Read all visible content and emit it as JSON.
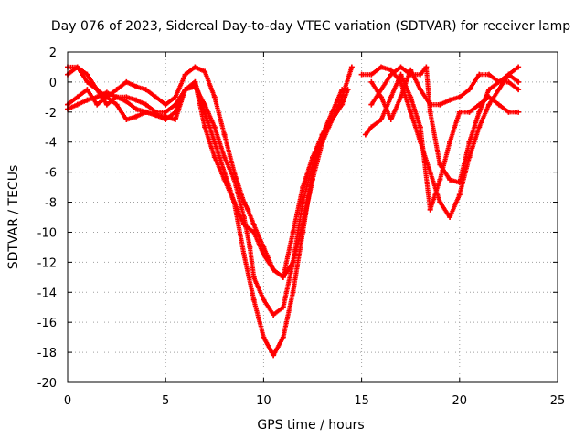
{
  "chart_data": {
    "type": "scatter",
    "title": "Day 076 of 2023, Sidereal Day-to-day VTEC variation (SDTVAR) for receiver lamp",
    "xlabel": "GPS time / hours",
    "ylabel": "SDTVAR / TECUs",
    "xlim": [
      0,
      25
    ],
    "ylim": [
      -20,
      2
    ],
    "xticks": [
      "0",
      "5",
      "10",
      "15",
      "20",
      "25"
    ],
    "yticks": [
      "2",
      "0",
      "-2",
      "-4",
      "-6",
      "-8",
      "-10",
      "-12",
      "-14",
      "-16",
      "-18",
      "-20"
    ],
    "grid": true,
    "marker": "+",
    "color": "#ff0000",
    "series": [
      {
        "name": "series-1",
        "x": [
          0.0,
          0.5,
          1.0,
          1.5,
          2.0,
          2.5,
          3.0,
          3.5,
          4.0,
          4.5,
          5.0,
          5.5,
          6.0,
          6.5,
          7.0,
          7.5,
          8.0,
          8.5,
          9.0,
          9.2,
          9.5,
          10.0,
          10.5,
          11.0,
          11.5,
          12.0,
          12.5,
          13.0,
          13.5,
          14.0,
          14.5
        ],
        "y": [
          1.0,
          1.0,
          0.0,
          -0.5,
          -1.0,
          -0.5,
          0.0,
          -0.3,
          -0.5,
          -1.0,
          -1.5,
          -1.0,
          0.5,
          1.0,
          0.7,
          -1.0,
          -3.5,
          -6.0,
          -8.0,
          -8.5,
          -9.5,
          -11.0,
          -12.5,
          -13.0,
          -12.0,
          -9.5,
          -6.5,
          -4.0,
          -2.5,
          -1.0,
          1.0
        ]
      },
      {
        "name": "series-2",
        "x": [
          0.0,
          0.5,
          1.0,
          1.5,
          2.0,
          2.5,
          3.0,
          3.5,
          4.0,
          4.5,
          5.0,
          5.5,
          6.0,
          6.5,
          7.0,
          7.5,
          8.0,
          8.5,
          9.0,
          9.3,
          9.5,
          10.0,
          10.5,
          11.0,
          11.5,
          12.0,
          12.5,
          13.0,
          13.5,
          14.0,
          14.3
        ],
        "y": [
          0.5,
          1.0,
          0.5,
          -0.5,
          -1.5,
          -1.0,
          -1.0,
          -1.2,
          -1.5,
          -2.0,
          -2.0,
          -1.5,
          -0.5,
          -0.3,
          -1.5,
          -3.0,
          -5.0,
          -6.5,
          -9.0,
          -11.0,
          -13.0,
          -14.5,
          -15.5,
          -15.0,
          -12.0,
          -8.0,
          -5.5,
          -3.5,
          -2.5,
          -1.5,
          -0.5
        ]
      },
      {
        "name": "series-3",
        "x": [
          0.0,
          0.5,
          1.0,
          1.5,
          2.0,
          2.5,
          3.0,
          3.5,
          4.0,
          4.5,
          5.0,
          5.5,
          6.0,
          6.5,
          7.0,
          7.5,
          8.0,
          8.5,
          9.0,
          9.5,
          10.0,
          10.5,
          11.0,
          11.5,
          12.0,
          12.5,
          13.0,
          13.5,
          14.0
        ],
        "y": [
          -1.5,
          -1.0,
          -0.5,
          -1.5,
          -1.0,
          -1.5,
          -2.5,
          -2.3,
          -2.0,
          -2.2,
          -2.3,
          -2.5,
          -0.5,
          0.0,
          -2.0,
          -4.0,
          -6.0,
          -8.0,
          -11.5,
          -14.5,
          -17.0,
          -18.2,
          -17.0,
          -14.0,
          -10.0,
          -6.0,
          -3.5,
          -2.0,
          -0.5
        ]
      },
      {
        "name": "series-4",
        "x": [
          0.0,
          0.5,
          1.0,
          1.5,
          2.0,
          2.5,
          3.0,
          3.5,
          4.0,
          4.5,
          5.0,
          5.5,
          6.0,
          6.5,
          7.0,
          7.5,
          8.0,
          8.5,
          9.0,
          9.5,
          10.0,
          10.5,
          11.0,
          11.5,
          12.0,
          12.5,
          13.0,
          13.5
        ],
        "y": [
          -1.8,
          -1.5,
          -1.2,
          -1.0,
          -0.7,
          -1.0,
          -1.3,
          -1.8,
          -2.0,
          -2.2,
          -2.5,
          -2.0,
          -0.5,
          0.0,
          -3.0,
          -5.0,
          -6.5,
          -8.0,
          -9.5,
          -10.0,
          -11.5,
          -12.5,
          -13.0,
          -10.0,
          -7.0,
          -5.0,
          -3.5,
          -2.5
        ]
      },
      {
        "name": "series-5",
        "x": [
          15.0,
          15.5,
          16.0,
          16.5,
          17.0,
          17.5,
          18.0,
          18.5,
          19.0,
          19.5,
          20.0,
          20.5,
          21.0,
          21.5,
          22.0,
          22.5,
          23.0
        ],
        "y": [
          0.5,
          0.5,
          1.0,
          0.8,
          0.0,
          -2.0,
          -4.0,
          -6.0,
          -8.0,
          -9.0,
          -7.5,
          -5.0,
          -3.0,
          -1.5,
          -0.5,
          0.5,
          1.0
        ]
      },
      {
        "name": "series-6",
        "x": [
          15.5,
          16.0,
          16.5,
          17.0,
          17.5,
          18.0,
          18.3,
          18.5,
          19.0,
          19.5,
          20.0,
          20.5,
          21.0,
          21.5,
          22.0,
          22.5,
          23.0
        ],
        "y": [
          -1.5,
          -0.5,
          0.5,
          1.0,
          0.5,
          0.5,
          1.0,
          -2.0,
          -5.5,
          -6.5,
          -6.7,
          -4.0,
          -2.0,
          -0.5,
          0.0,
          0.0,
          -0.5
        ]
      },
      {
        "name": "series-7",
        "x": [
          15.2,
          15.5,
          16.0,
          16.5,
          17.0,
          17.5,
          18.0,
          18.5,
          19.0,
          19.5,
          20.0,
          20.5,
          21.0,
          21.5,
          22.0,
          22.5,
          23.0
        ],
        "y": [
          -3.5,
          -3.0,
          -2.5,
          -1.0,
          0.5,
          -1.0,
          -3.0,
          -8.5,
          -6.5,
          -4.0,
          -2.0,
          -2.0,
          -1.5,
          -1.0,
          -1.5,
          -2.0,
          -2.0
        ]
      },
      {
        "name": "series-8",
        "x": [
          15.5,
          16.0,
          16.5,
          17.0,
          17.5,
          18.0,
          18.5,
          19.0,
          19.5,
          20.0,
          20.5,
          21.0,
          21.5,
          22.0,
          22.5,
          23.0
        ],
        "y": [
          0.0,
          -1.0,
          -2.5,
          -1.0,
          0.8,
          -0.5,
          -1.5,
          -1.5,
          -1.2,
          -1.0,
          -0.5,
          0.5,
          0.5,
          0.0,
          0.5,
          0.0
        ]
      }
    ]
  }
}
